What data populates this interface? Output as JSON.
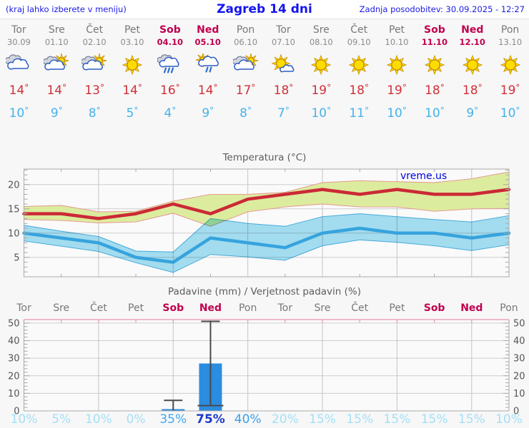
{
  "header": {
    "left_note": "(kraj lahko izberete v meniju)",
    "title": "Zagreb 14 dni",
    "updated": "Zadnja posodobitev: 30.09.2025 - 12:27"
  },
  "units": {
    "degree": "°"
  },
  "watermark": "vreme.us",
  "days": [
    {
      "name": "Tor",
      "date": "30.09",
      "icon": "cloudy",
      "high": 14,
      "low": 10,
      "weekend": false
    },
    {
      "name": "Sre",
      "date": "01.10",
      "icon": "partly",
      "high": 14,
      "low": 9,
      "weekend": false
    },
    {
      "name": "Čet",
      "date": "02.10",
      "icon": "partly",
      "high": 13,
      "low": 8,
      "weekend": false
    },
    {
      "name": "Pet",
      "date": "03.10",
      "icon": "sunny",
      "high": 14,
      "low": 5,
      "weekend": false
    },
    {
      "name": "Sob",
      "date": "04.10",
      "icon": "rain",
      "high": 16,
      "low": 4,
      "weekend": true
    },
    {
      "name": "Ned",
      "date": "05.10",
      "icon": "sun-rain",
      "high": 14,
      "low": 9,
      "weekend": true
    },
    {
      "name": "Pon",
      "date": "06.10",
      "icon": "partly",
      "high": 17,
      "low": 8,
      "weekend": false
    },
    {
      "name": "Tor",
      "date": "07.10",
      "icon": "mostly-sunny",
      "high": 18,
      "low": 7,
      "weekend": false
    },
    {
      "name": "Sre",
      "date": "08.10",
      "icon": "sunny",
      "high": 19,
      "low": 10,
      "weekend": false
    },
    {
      "name": "Čet",
      "date": "09.10",
      "icon": "sunny",
      "high": 18,
      "low": 11,
      "weekend": false
    },
    {
      "name": "Pet",
      "date": "10.10",
      "icon": "sunny",
      "high": 19,
      "low": 10,
      "weekend": false
    },
    {
      "name": "Sob",
      "date": "11.10",
      "icon": "sunny",
      "high": 18,
      "low": 10,
      "weekend": true
    },
    {
      "name": "Ned",
      "date": "12.10",
      "icon": "sunny",
      "high": 18,
      "low": 9,
      "weekend": true
    },
    {
      "name": "Pon",
      "date": "13.10",
      "icon": "sunny",
      "high": 19,
      "low": 10,
      "weekend": false
    }
  ],
  "colors": {
    "header_blue": "#1a1ae6",
    "day_gray": "#787878",
    "weekend_red": "#c0004e",
    "high_red": "#d22f38",
    "low_blue": "#45b2ea",
    "line_red": "#cb2936",
    "line_blue": "#36a3dd",
    "band_yellow": "#dcec9e",
    "band_yellow_edge": "#e4918c",
    "band_blue": "#a6e1f4",
    "band_blue_edge": "#45aede",
    "bar_blue": "#2b8de0",
    "whisker": "#4a4a4a",
    "grid": "#cdcdcd",
    "axis": "#a9a9a9",
    "pink_axis": "#eba6ba",
    "tick_label": "#555555",
    "watermark_blue": "#0000e0"
  },
  "chart_data": [
    {
      "type": "line",
      "title": "Temperatura (°C)",
      "x_labels": [
        "Tor",
        "Sre",
        "Čet",
        "Pet",
        "Sob",
        "Ned",
        "Pon",
        "Tor",
        "Sre",
        "Čet",
        "Pet",
        "Sob",
        "Ned",
        "Pon"
      ],
      "ylim": [
        1,
        23.2
      ],
      "yticks": [
        5,
        10,
        15,
        20
      ],
      "grid": true,
      "legend": "none",
      "series": [
        {
          "name": "max temperatura",
          "kind": "line",
          "color": "#cb2936",
          "values": [
            14,
            14,
            13,
            14,
            16,
            14,
            17,
            18,
            19,
            18,
            19,
            18,
            18,
            19
          ]
        },
        {
          "name": "max temperatura razpon",
          "kind": "band",
          "color": "#dcec9e",
          "upper": [
            15.5,
            15.7,
            14.4,
            14.5,
            16.6,
            18,
            18,
            18.4,
            20.4,
            20.8,
            20.6,
            20.4,
            21.2,
            22.6
          ],
          "lower": [
            12.8,
            12.6,
            12.1,
            12.3,
            14.1,
            11.4,
            14.4,
            15.4,
            16.0,
            15.4,
            15.4,
            14.5,
            15.0,
            15.1
          ]
        },
        {
          "name": "min temperatura",
          "kind": "line",
          "color": "#36a3dd",
          "values": [
            10,
            9,
            8,
            5,
            4,
            9,
            8,
            7,
            10,
            11,
            10,
            10,
            9,
            10
          ]
        },
        {
          "name": "min temperatura razpon",
          "kind": "band",
          "color": "#a6e1f4",
          "upper": [
            11.6,
            10.4,
            9.3,
            6.3,
            6.1,
            13,
            12,
            11.4,
            13.4,
            14,
            13.4,
            12.8,
            12.3,
            13.6
          ],
          "lower": [
            8.4,
            7.3,
            6.2,
            3.9,
            1.9,
            5.6,
            5.1,
            4.4,
            7.4,
            8.6,
            8.1,
            7.4,
            6.4,
            7.6
          ]
        }
      ]
    },
    {
      "type": "bar",
      "title": "Padavine (mm) / Verjetnost padavin (%)",
      "x_labels": [
        "Tor",
        "Sre",
        "Čet",
        "Pet",
        "Sob",
        "Ned",
        "Pon",
        "Tor",
        "Sre",
        "Čet",
        "Pet",
        "Sob",
        "Ned",
        "Pon"
      ],
      "ylim": [
        0,
        52
      ],
      "yticks": [
        0,
        10,
        20,
        30,
        40,
        50
      ],
      "grid": true,
      "values": [
        0,
        0,
        0,
        0,
        1,
        27,
        0,
        0,
        0,
        0,
        0,
        0,
        0,
        0
      ],
      "whisker_max": [
        null,
        null,
        null,
        null,
        6,
        51,
        null,
        null,
        null,
        null,
        null,
        null,
        null,
        null
      ],
      "whisker_min": [
        null,
        null,
        null,
        null,
        0,
        3,
        null,
        null,
        null,
        null,
        null,
        null,
        null,
        null
      ],
      "probabilities": [
        "10%",
        "5%",
        "10%",
        "0%",
        "35%",
        "75%",
        "40%",
        "20%",
        "15%",
        "15%",
        "15%",
        "15%",
        "15%",
        "10%"
      ],
      "prob_colors": [
        "#a2e0f7",
        "#a2e0f7",
        "#a2e0f7",
        "#a2e0f7",
        "#3fa8f0",
        "#1d3ac6",
        "#3aa0ea",
        "#a2e0f7",
        "#a2e0f7",
        "#a2e0f7",
        "#a2e0f7",
        "#a2e0f7",
        "#a2e0f7",
        "#a2e0f7"
      ]
    }
  ]
}
